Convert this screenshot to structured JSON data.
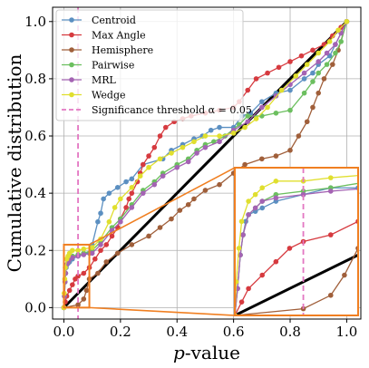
{
  "chart_data": {
    "type": "line",
    "xlabel_italic": "p",
    "xlabel_rest": "-value",
    "ylabel": "Cumulative distribution",
    "xlim": [
      -0.04,
      1.05
    ],
    "ylim": [
      -0.04,
      1.05
    ],
    "xticks": [
      "0.0",
      "0.2",
      "0.4",
      "0.6",
      "0.8",
      "1.0"
    ],
    "yticks": [
      "0.0",
      "0.2",
      "0.4",
      "0.6",
      "0.8",
      "1.0"
    ],
    "grid": true,
    "legend_position": "top-left",
    "threshold": {
      "name": "Significance threshold α = 0.05",
      "x": 0.05,
      "color": "#e377c2"
    },
    "diagonal": {
      "color": "#000000"
    },
    "inset": {
      "xlim": [
        0,
        0.09
      ],
      "ylim": [
        0,
        0.22
      ],
      "frame_color": "#f07f21"
    },
    "series": [
      {
        "name": "Centroid",
        "color": "#5b8fc1",
        "points": [
          [
            0,
            0
          ],
          [
            0.002,
            0.04
          ],
          [
            0.004,
            0.09
          ],
          [
            0.006,
            0.12
          ],
          [
            0.008,
            0.14
          ],
          [
            0.01,
            0.15
          ],
          [
            0.015,
            0.155
          ],
          [
            0.02,
            0.16
          ],
          [
            0.03,
            0.17
          ],
          [
            0.05,
            0.18
          ],
          [
            0.07,
            0.19
          ],
          [
            0.09,
            0.19
          ],
          [
            0.1,
            0.22
          ],
          [
            0.12,
            0.3
          ],
          [
            0.13,
            0.33
          ],
          [
            0.14,
            0.38
          ],
          [
            0.16,
            0.4
          ],
          [
            0.19,
            0.42
          ],
          [
            0.22,
            0.44
          ],
          [
            0.24,
            0.45
          ],
          [
            0.28,
            0.5
          ],
          [
            0.35,
            0.52
          ],
          [
            0.38,
            0.55
          ],
          [
            0.42,
            0.57
          ],
          [
            0.46,
            0.59
          ],
          [
            0.49,
            0.6
          ],
          [
            0.52,
            0.62
          ],
          [
            0.55,
            0.63
          ],
          [
            0.6,
            0.63
          ],
          [
            0.63,
            0.67
          ],
          [
            0.66,
            0.68
          ],
          [
            0.7,
            0.72
          ],
          [
            0.75,
            0.75
          ],
          [
            0.8,
            0.76
          ],
          [
            0.85,
            0.8
          ],
          [
            0.88,
            0.82
          ],
          [
            0.9,
            0.85
          ],
          [
            0.94,
            0.88
          ],
          [
            0.96,
            0.92
          ],
          [
            0.98,
            0.96
          ],
          [
            1,
            1
          ]
        ]
      },
      {
        "name": "Max Angle",
        "color": "#d63a3f",
        "points": [
          [
            0,
            0
          ],
          [
            0.005,
            0.02
          ],
          [
            0.01,
            0.04
          ],
          [
            0.02,
            0.06
          ],
          [
            0.03,
            0.08
          ],
          [
            0.04,
            0.1
          ],
          [
            0.05,
            0.11
          ],
          [
            0.07,
            0.12
          ],
          [
            0.09,
            0.14
          ],
          [
            0.11,
            0.17
          ],
          [
            0.13,
            0.2
          ],
          [
            0.15,
            0.22
          ],
          [
            0.17,
            0.25
          ],
          [
            0.19,
            0.28
          ],
          [
            0.2,
            0.31
          ],
          [
            0.22,
            0.35
          ],
          [
            0.23,
            0.38
          ],
          [
            0.24,
            0.4
          ],
          [
            0.26,
            0.44
          ],
          [
            0.27,
            0.47
          ],
          [
            0.28,
            0.5
          ],
          [
            0.3,
            0.53
          ],
          [
            0.32,
            0.56
          ],
          [
            0.34,
            0.6
          ],
          [
            0.36,
            0.63
          ],
          [
            0.39,
            0.65
          ],
          [
            0.42,
            0.66
          ],
          [
            0.45,
            0.67
          ],
          [
            0.5,
            0.68
          ],
          [
            0.55,
            0.69
          ],
          [
            0.6,
            0.7
          ],
          [
            0.62,
            0.72
          ],
          [
            0.65,
            0.76
          ],
          [
            0.68,
            0.8
          ],
          [
            0.72,
            0.82
          ],
          [
            0.76,
            0.84
          ],
          [
            0.8,
            0.86
          ],
          [
            0.84,
            0.88
          ],
          [
            0.88,
            0.9
          ],
          [
            0.92,
            0.92
          ],
          [
            0.95,
            0.95
          ],
          [
            0.98,
            0.98
          ],
          [
            1,
            1
          ]
        ]
      },
      {
        "name": "Hemisphere",
        "color": "#a05f3a",
        "points": [
          [
            0,
            0
          ],
          [
            0.05,
            0.01
          ],
          [
            0.07,
            0.03
          ],
          [
            0.08,
            0.06
          ],
          [
            0.09,
            0.1
          ],
          [
            0.12,
            0.12
          ],
          [
            0.15,
            0.16
          ],
          [
            0.19,
            0.19
          ],
          [
            0.24,
            0.22
          ],
          [
            0.3,
            0.25
          ],
          [
            0.34,
            0.28
          ],
          [
            0.38,
            0.31
          ],
          [
            0.41,
            0.34
          ],
          [
            0.44,
            0.36
          ],
          [
            0.46,
            0.38
          ],
          [
            0.5,
            0.41
          ],
          [
            0.55,
            0.43
          ],
          [
            0.6,
            0.47
          ],
          [
            0.64,
            0.5
          ],
          [
            0.7,
            0.52
          ],
          [
            0.75,
            0.53
          ],
          [
            0.8,
            0.55
          ],
          [
            0.83,
            0.6
          ],
          [
            0.86,
            0.65
          ],
          [
            0.88,
            0.7
          ],
          [
            0.9,
            0.75
          ],
          [
            0.92,
            0.8
          ],
          [
            0.95,
            0.85
          ],
          [
            0.97,
            0.9
          ],
          [
            1,
            1
          ]
        ]
      },
      {
        "name": "Pairwise",
        "color": "#6cbf5f",
        "points": [
          [
            0,
            0
          ],
          [
            0.002,
            0.04
          ],
          [
            0.004,
            0.09
          ],
          [
            0.006,
            0.12
          ],
          [
            0.01,
            0.15
          ],
          [
            0.015,
            0.16
          ],
          [
            0.02,
            0.17
          ],
          [
            0.03,
            0.18
          ],
          [
            0.05,
            0.185
          ],
          [
            0.07,
            0.19
          ],
          [
            0.1,
            0.2
          ],
          [
            0.13,
            0.23
          ],
          [
            0.17,
            0.28
          ],
          [
            0.2,
            0.31
          ],
          [
            0.24,
            0.36
          ],
          [
            0.28,
            0.41
          ],
          [
            0.32,
            0.44
          ],
          [
            0.35,
            0.47
          ],
          [
            0.4,
            0.5
          ],
          [
            0.44,
            0.52
          ],
          [
            0.47,
            0.55
          ],
          [
            0.5,
            0.57
          ],
          [
            0.53,
            0.58
          ],
          [
            0.57,
            0.6
          ],
          [
            0.62,
            0.64
          ],
          [
            0.65,
            0.67
          ],
          [
            0.7,
            0.67
          ],
          [
            0.75,
            0.68
          ],
          [
            0.8,
            0.69
          ],
          [
            0.85,
            0.75
          ],
          [
            0.88,
            0.79
          ],
          [
            0.9,
            0.82
          ],
          [
            0.93,
            0.85
          ],
          [
            0.96,
            0.89
          ],
          [
            0.98,
            0.93
          ],
          [
            1,
            1
          ]
        ]
      },
      {
        "name": "MRL",
        "color": "#a463b3",
        "points": [
          [
            0,
            0
          ],
          [
            0.002,
            0.04
          ],
          [
            0.004,
            0.09
          ],
          [
            0.006,
            0.12
          ],
          [
            0.01,
            0.15
          ],
          [
            0.015,
            0.16
          ],
          [
            0.02,
            0.17
          ],
          [
            0.03,
            0.175
          ],
          [
            0.05,
            0.18
          ],
          [
            0.07,
            0.185
          ],
          [
            0.1,
            0.19
          ],
          [
            0.13,
            0.22
          ],
          [
            0.17,
            0.27
          ],
          [
            0.2,
            0.3
          ],
          [
            0.24,
            0.35
          ],
          [
            0.28,
            0.4
          ],
          [
            0.32,
            0.43
          ],
          [
            0.35,
            0.46
          ],
          [
            0.4,
            0.49
          ],
          [
            0.44,
            0.51
          ],
          [
            0.47,
            0.54
          ],
          [
            0.5,
            0.56
          ],
          [
            0.55,
            0.58
          ],
          [
            0.6,
            0.62
          ],
          [
            0.65,
            0.65
          ],
          [
            0.7,
            0.7
          ],
          [
            0.75,
            0.74
          ],
          [
            0.8,
            0.78
          ],
          [
            0.85,
            0.82
          ],
          [
            0.9,
            0.86
          ],
          [
            0.93,
            0.89
          ],
          [
            0.96,
            0.92
          ],
          [
            0.98,
            0.96
          ],
          [
            1,
            1
          ]
        ]
      },
      {
        "name": "Wedge",
        "color": "#e0df2e",
        "points": [
          [
            0,
            0
          ],
          [
            0.001,
            0.05
          ],
          [
            0.003,
            0.1
          ],
          [
            0.005,
            0.14
          ],
          [
            0.01,
            0.17
          ],
          [
            0.015,
            0.18
          ],
          [
            0.02,
            0.19
          ],
          [
            0.03,
            0.2
          ],
          [
            0.05,
            0.2
          ],
          [
            0.07,
            0.205
          ],
          [
            0.1,
            0.21
          ],
          [
            0.13,
            0.24
          ],
          [
            0.16,
            0.3
          ],
          [
            0.18,
            0.35
          ],
          [
            0.2,
            0.38
          ],
          [
            0.24,
            0.42
          ],
          [
            0.27,
            0.46
          ],
          [
            0.3,
            0.49
          ],
          [
            0.34,
            0.52
          ],
          [
            0.38,
            0.54
          ],
          [
            0.42,
            0.56
          ],
          [
            0.46,
            0.58
          ],
          [
            0.5,
            0.6
          ],
          [
            0.55,
            0.6
          ],
          [
            0.6,
            0.61
          ],
          [
            0.64,
            0.63
          ],
          [
            0.68,
            0.66
          ],
          [
            0.72,
            0.7
          ],
          [
            0.77,
            0.76
          ],
          [
            0.82,
            0.81
          ],
          [
            0.86,
            0.85
          ],
          [
            0.9,
            0.89
          ],
          [
            0.94,
            0.93
          ],
          [
            0.97,
            0.97
          ],
          [
            1,
            1
          ]
        ]
      }
    ]
  }
}
